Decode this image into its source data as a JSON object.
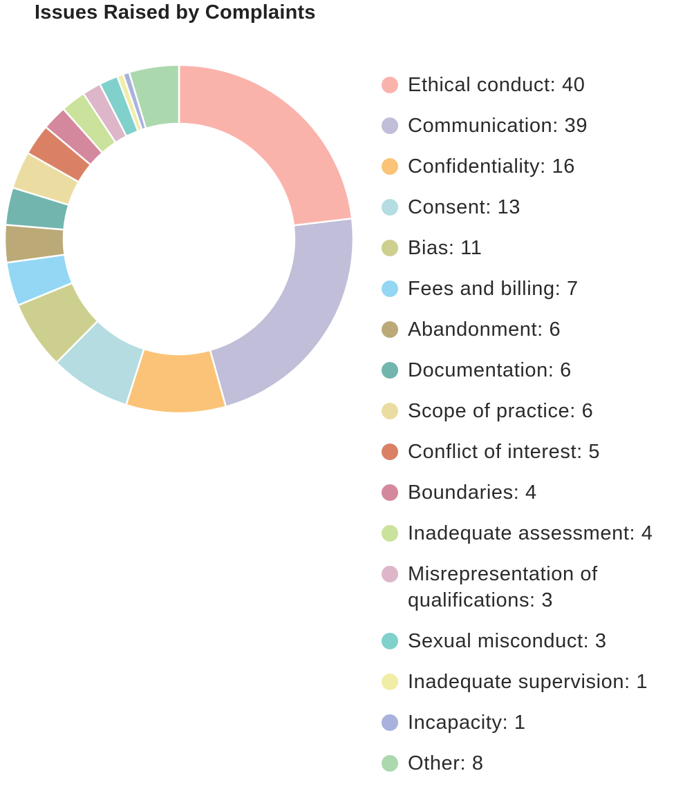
{
  "chart_data": {
    "type": "pie",
    "donut": true,
    "title": "Issues Raised by Complaints",
    "legend_position": "right",
    "slices": [
      {
        "label": "Ethical conduct",
        "value": 40,
        "color": "#FAB3AB"
      },
      {
        "label": "Communication",
        "value": 39,
        "color": "#C0BED8"
      },
      {
        "label": "Confidentiality",
        "value": 16,
        "color": "#FBC377"
      },
      {
        "label": "Consent",
        "value": 13,
        "color": "#B5DDE1"
      },
      {
        "label": "Bias",
        "value": 11,
        "color": "#CDCF8E"
      },
      {
        "label": "Fees and billing",
        "value": 7,
        "color": "#93D7F5"
      },
      {
        "label": "Abandonment",
        "value": 6,
        "color": "#BBAA77"
      },
      {
        "label": "Documentation",
        "value": 6,
        "color": "#71B5AE"
      },
      {
        "label": "Scope of practice",
        "value": 6,
        "color": "#EBDDA2"
      },
      {
        "label": "Conflict of interest",
        "value": 5,
        "color": "#DA8165"
      },
      {
        "label": "Boundaries",
        "value": 4,
        "color": "#D4889E"
      },
      {
        "label": "Inadequate assessment",
        "value": 4,
        "color": "#CAE29B"
      },
      {
        "label": "Misrepresentation of qualifications",
        "value": 3,
        "color": "#DDB6CA"
      },
      {
        "label": "Sexual misconduct",
        "value": 3,
        "color": "#80D0CB"
      },
      {
        "label": "Inadequate supervision",
        "value": 1,
        "color": "#F1EDA7"
      },
      {
        "label": "Incapacity",
        "value": 1,
        "color": "#A9B2DC"
      },
      {
        "label": "Other",
        "value": 8,
        "color": "#ACD8AE"
      }
    ]
  }
}
